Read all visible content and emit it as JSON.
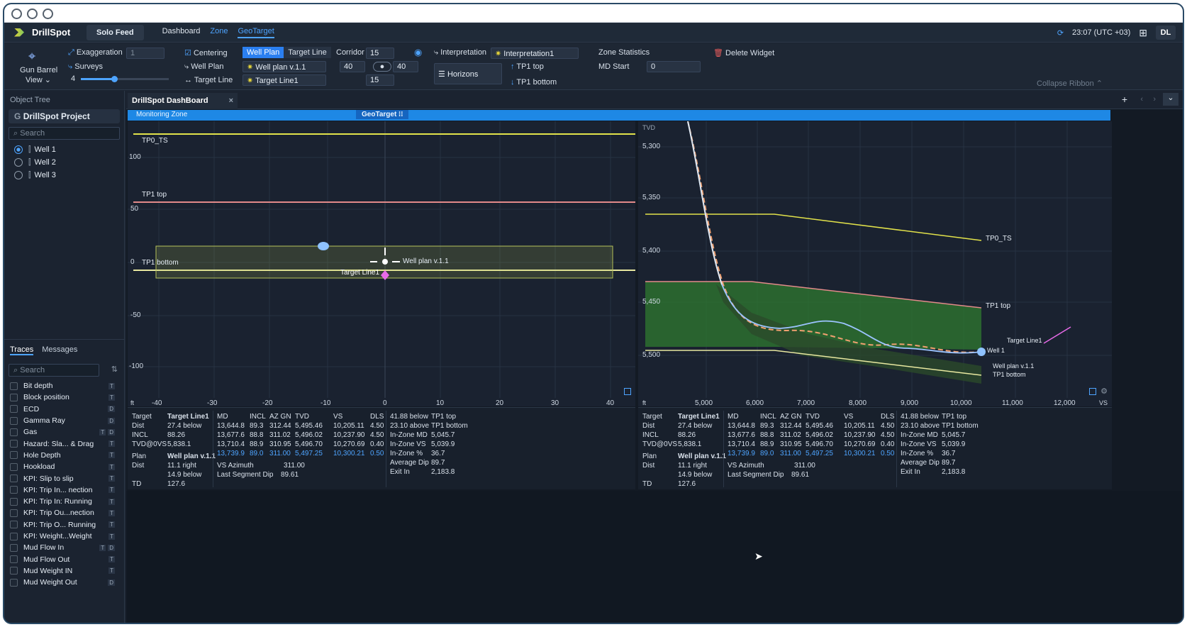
{
  "app": {
    "name": "DrillSpot",
    "solo_feed": "Solo Feed",
    "nav": [
      "Dashboard",
      "Zone",
      "GeoTarget"
    ],
    "time": "23:07 (UTC +03)",
    "avatar": "DL"
  },
  "ribbon": {
    "gun_barrel": "Gun Barrel",
    "view": "View",
    "exaggeration": "Exaggeration",
    "exaggeration_value": "1",
    "surveys": "Surveys",
    "surveys_value": "4",
    "surveys_slider_fraction": 0.38,
    "centering": "Centering",
    "well_plan": "Well Plan",
    "target_line": "Target Line",
    "seg_well_plan": "Well Plan",
    "seg_target_line": "Target Line",
    "well_plan_value": "Well plan v.1.1",
    "target_line_value": "Target Line1",
    "corridor": "Corridor",
    "corridor_top": "15",
    "corridor_left": "40",
    "corridor_right": "40",
    "corridor_bottom": "15",
    "interpretation": "Interpretation",
    "interpretation_value": "Interpretation1",
    "horizons": "Horizons",
    "tp1_top": "TP1 top",
    "tp1_bottom": "TP1 bottom",
    "zone_statistics": "Zone Statistics",
    "md_start": "MD Start",
    "md_start_value": "0",
    "delete_widget": "Delete Widget",
    "collapse_ribbon": "Collapse Ribbon"
  },
  "sidebar": {
    "object_tree": "Object Tree",
    "project": "DrillSpot Project",
    "search": "Search",
    "wells": [
      "Well 1",
      "Well 2",
      "Well 3"
    ],
    "tabs": [
      "Traces",
      "Messages"
    ],
    "trace_search": "Search",
    "traces": [
      {
        "name": "Bit depth",
        "flags": [
          "T"
        ]
      },
      {
        "name": "Block position",
        "flags": [
          "T"
        ]
      },
      {
        "name": "ECD",
        "flags": [
          "D"
        ]
      },
      {
        "name": "Gamma Ray",
        "flags": [
          "D"
        ]
      },
      {
        "name": "Gas",
        "flags": [
          "T",
          "D"
        ]
      },
      {
        "name": "Hazard: Sla... & Drag",
        "flags": [
          "T"
        ]
      },
      {
        "name": "Hole Depth",
        "flags": [
          "T"
        ]
      },
      {
        "name": "Hookload",
        "flags": [
          "T"
        ]
      },
      {
        "name": "KPI: Slip to slip",
        "flags": [
          "T"
        ]
      },
      {
        "name": "KPI: Trip In... nection",
        "flags": [
          "T"
        ]
      },
      {
        "name": "KPI: Trip In: Running",
        "flags": [
          "T"
        ]
      },
      {
        "name": "KPI: Trip Ou...nection",
        "flags": [
          "T"
        ]
      },
      {
        "name": "KPI: Trip O... Running",
        "flags": [
          "T"
        ]
      },
      {
        "name": "KPI: Weight...Weight",
        "flags": [
          "T"
        ]
      },
      {
        "name": "Mud Flow In",
        "flags": [
          "T",
          "D"
        ]
      },
      {
        "name": "Mud Flow Out",
        "flags": [
          "T"
        ]
      },
      {
        "name": "Mud Weight IN",
        "flags": [
          "T"
        ]
      },
      {
        "name": "Mud Weight Out",
        "flags": [
          "D"
        ]
      }
    ]
  },
  "main": {
    "doc_tab": "DrillSpot DashBoard",
    "monitoring_zone": "Monitoring Zone",
    "geotarget": "GeoTarget"
  },
  "left_chart": {
    "labels": {
      "tp0": "TP0_TS",
      "tp1top": "TP1 top",
      "tp1bottom": "TP1 bottom",
      "well_plan": "Well plan v.1.1",
      "target_line": "Target Line1",
      "unit": "ft"
    },
    "x_ticks": [
      "-40",
      "-30",
      "-20",
      "-10",
      "0",
      "10",
      "20",
      "30",
      "40"
    ],
    "y_ticks": [
      "100",
      "50",
      "0",
      "-50",
      "-100"
    ]
  },
  "right_chart": {
    "labels": {
      "tvd": "TVD",
      "tp0": "TP0_TS",
      "tp1top": "TP1 top",
      "tp1bottom": "TP1 bottom",
      "well1": "Well 1",
      "well_plan": "Well plan v.1.1",
      "target_line": "Target Line1",
      "unit": "ft",
      "vs": "VS"
    },
    "x_ticks": [
      "5,000",
      "6,000",
      "7,000",
      "8,000",
      "9,000",
      "10,000",
      "11,000",
      "12,000"
    ],
    "y_ticks": [
      "5,300",
      "5,350",
      "5,400",
      "5,450",
      "5,500"
    ]
  },
  "stats": {
    "col1": [
      [
        "Target",
        "Target Line1"
      ],
      [
        "Dist",
        "27.4 below"
      ],
      [
        "INCL",
        "88.26"
      ],
      [
        "TVD@0VS",
        "5,838.1"
      ],
      [
        "Plan",
        "Well plan v.1.1"
      ],
      [
        "Dist",
        "11.1 right"
      ],
      [
        "",
        "14.9 below"
      ],
      [
        "TD",
        "127.6"
      ]
    ],
    "headers": [
      "MD",
      "INCL",
      "AZ GN",
      "TVD",
      "VS",
      "DLS"
    ],
    "rows": [
      [
        "13,644.8",
        "89.3",
        "312.44",
        "5,495.46",
        "10,205.11",
        "4.50"
      ],
      [
        "13,677.6",
        "88.8",
        "311.02",
        "5,496.02",
        "10,237.90",
        "4.50"
      ],
      [
        "13,710.4",
        "88.9",
        "310.95",
        "5,496.70",
        "10,270.69",
        "0.40"
      ],
      [
        "13,739.9",
        "89.0",
        "311.00",
        "5,497.25",
        "10,300.21",
        "0.50"
      ]
    ],
    "vs_azimuth": [
      "VS Azimuth",
      "311.00"
    ],
    "last_seg_dip": [
      "Last Segment Dip",
      "89.61"
    ],
    "col3": [
      [
        "41.88 below",
        "TP1 top"
      ],
      [
        "23.10 above",
        "TP1 bottom"
      ],
      [
        "In-Zone MD",
        "5,045.7"
      ],
      [
        "In-Zone VS",
        "5,039.9"
      ],
      [
        "In-Zone %",
        "36.7"
      ],
      [
        "Average Dip",
        "89.7"
      ],
      [
        "Exit In",
        "2,183.8"
      ]
    ]
  }
}
